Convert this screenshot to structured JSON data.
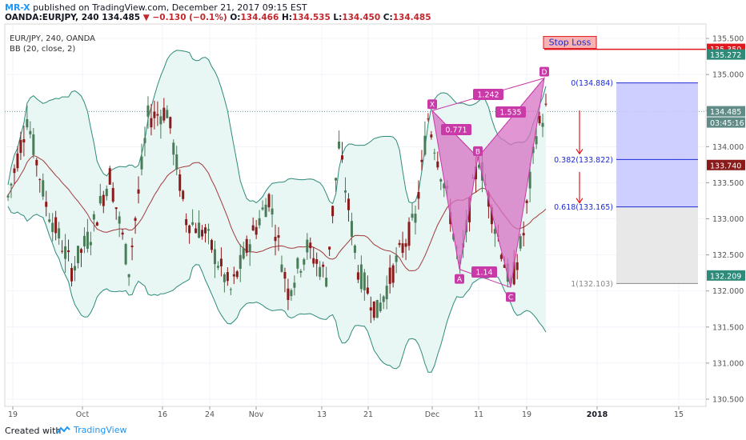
{
  "header": {
    "author": "MR-X",
    "published": "published on TradingView.com, December 21, 2017 09:15 EST",
    "symbol": "OANDA:EURJPY, 240",
    "last": "134.485",
    "change_arrow": "▼",
    "change": "−0.130 (−0.1%)",
    "open_label": "O:",
    "open": "134.466",
    "high_label": "H:",
    "high": "134.535",
    "low_label": "L:",
    "low": "134.450",
    "close_label": "C:",
    "close": "134.485"
  },
  "legend": {
    "series": "EUR/JPY, 240, OANDA",
    "indicator": "BB (20, close, 2)"
  },
  "footer": {
    "created_with": "Created with",
    "brand": "TradingView"
  },
  "colors": {
    "up_candle": "#4a7c59",
    "down_candle": "#8b1a1a",
    "bb_band": "#2e8b7a",
    "bb_fill": "#e8f6f4",
    "bb_mid": "#a23b3b",
    "pattern": "#c93aa8",
    "pattern_fill": "#d771c3",
    "stop": "#e0191f",
    "fib_blue": "#1a2ad6",
    "fib_box": "#c9c9ff",
    "gray_box": "#e8e8e8",
    "accent": "#2196f3"
  },
  "chart_data": {
    "type": "candlestick",
    "ylim": [
      130.4,
      135.7
    ],
    "y_ticks": [
      "135.500",
      "135.000",
      "134.500",
      "134.000",
      "133.500",
      "133.000",
      "132.500",
      "132.000",
      "131.500",
      "131.000",
      "130.500"
    ],
    "x_ticks": [
      "19",
      "Oct",
      "16",
      "24",
      "Nov",
      "13",
      "21",
      "Dec",
      "11",
      "19",
      "2018",
      "15"
    ],
    "price_labels": [
      {
        "label": "135.350",
        "value": 135.35,
        "color": "#e0191f"
      },
      {
        "label": "135.272",
        "value": 135.272,
        "color": "#2e8b7a"
      },
      {
        "label": "134.485",
        "value": 134.485,
        "color": "#5f8c87"
      },
      {
        "label": "03:45:16",
        "value": 134.33,
        "color": "#5f8c87"
      },
      {
        "label": "133.740",
        "value": 133.74,
        "color": "#8b1a1a"
      },
      {
        "label": "132.209",
        "value": 132.209,
        "color": "#2e8b7a"
      }
    ],
    "harmonic_pattern": {
      "points": [
        {
          "name": "X",
          "value": 134.5
        },
        {
          "name": "A",
          "value": 132.3
        },
        {
          "name": "B",
          "value": 133.85
        },
        {
          "name": "C",
          "value": 132.05
        },
        {
          "name": "D",
          "value": 134.95
        }
      ],
      "ratios": [
        "1.242",
        "0.771",
        "1.535",
        "1.14"
      ]
    },
    "fib_levels": [
      {
        "label": "0(134.884)",
        "value": 134.884
      },
      {
        "label": "0.382(133.822)",
        "value": 133.822
      },
      {
        "label": "0.618(133.165)",
        "value": 133.165
      },
      {
        "label": "1(132.103)",
        "value": 132.103
      }
    ],
    "stop_loss": {
      "label": "Stop Loss",
      "value": 135.35
    }
  }
}
